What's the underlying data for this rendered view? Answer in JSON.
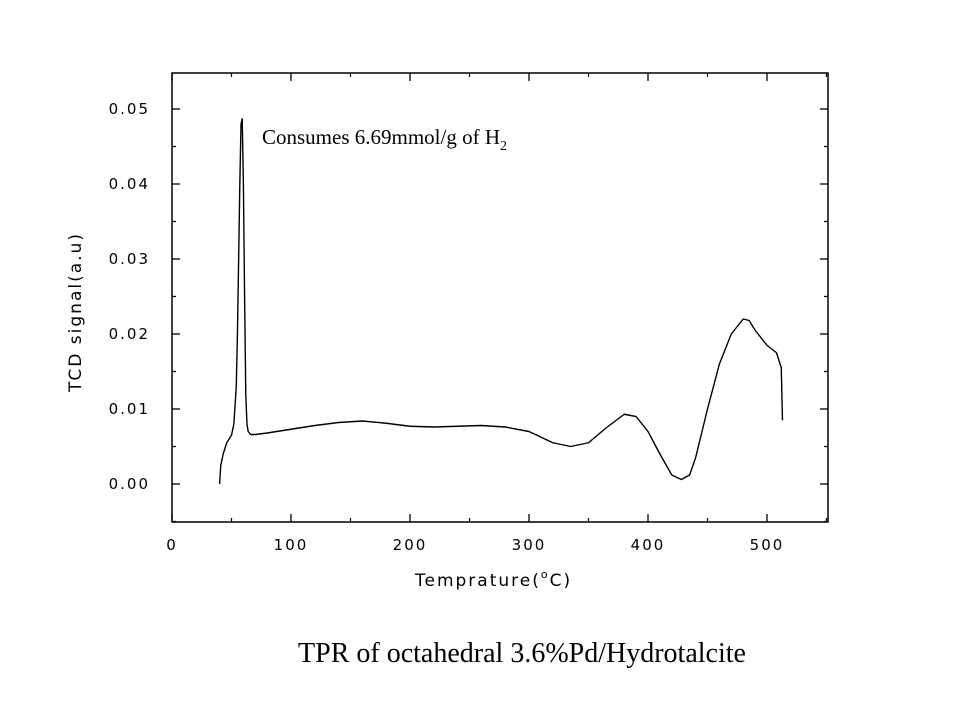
{
  "chart_data": {
    "type": "line",
    "caption": "TPR of octahedral 3.6%Pd/Hydrotalcite",
    "annotation": {
      "text": "Consumes 6.69mmol/g of H",
      "subscript": "2"
    },
    "xlabel": {
      "text": "Temprature(",
      "superscript": "o",
      "unit": "C)"
    },
    "ylabel": "TCD signal(a.u)",
    "xlim": [
      0,
      550
    ],
    "ylim": [
      -0.005,
      0.055
    ],
    "x_ticks": [
      0,
      100,
      200,
      300,
      400,
      500
    ],
    "x_tick_labels": [
      "0",
      "100",
      "200",
      "300",
      "400",
      "500"
    ],
    "y_ticks": [
      0.0,
      0.01,
      0.02,
      0.03,
      0.04,
      0.05
    ],
    "y_tick_labels": [
      "0.00",
      "0.01",
      "0.02",
      "0.03",
      "0.04",
      "0.05"
    ],
    "grid": false,
    "series": [
      {
        "color": "#000000",
        "x": [
          40,
          41,
          43,
          46,
          50,
          52,
          54,
          55,
          56,
          57,
          58,
          59,
          60,
          61,
          62,
          63,
          64,
          66,
          70,
          80,
          100,
          120,
          140,
          160,
          180,
          200,
          220,
          240,
          260,
          280,
          300,
          320,
          335,
          350,
          365,
          380,
          390,
          400,
          410,
          420,
          428,
          435,
          440,
          450,
          460,
          470,
          480,
          485,
          490,
          500,
          508,
          512,
          513
        ],
        "y": [
          0.0,
          0.0025,
          0.004,
          0.0055,
          0.0065,
          0.008,
          0.013,
          0.02,
          0.03,
          0.04,
          0.048,
          0.0487,
          0.04,
          0.025,
          0.012,
          0.008,
          0.007,
          0.0066,
          0.0066,
          0.0068,
          0.0073,
          0.0078,
          0.0082,
          0.0084,
          0.0081,
          0.0077,
          0.0076,
          0.0077,
          0.0078,
          0.0076,
          0.007,
          0.0055,
          0.005,
          0.0055,
          0.0075,
          0.0093,
          0.009,
          0.007,
          0.004,
          0.0012,
          0.0006,
          0.0012,
          0.0035,
          0.01,
          0.016,
          0.02,
          0.022,
          0.0218,
          0.0205,
          0.0185,
          0.0175,
          0.0155,
          0.0085
        ]
      }
    ]
  }
}
